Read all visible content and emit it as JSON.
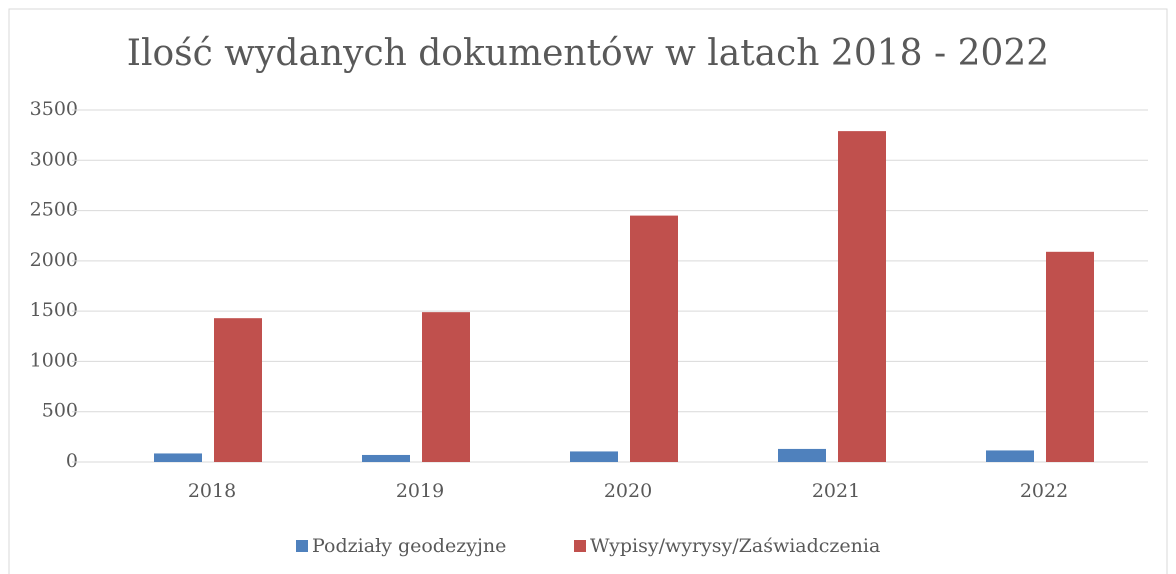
{
  "chart_data": {
    "type": "bar",
    "title": "Ilość wydanych dokumentów w latach 2018 - 2022",
    "categories": [
      "2018",
      "2019",
      "2020",
      "2021",
      "2022"
    ],
    "series": [
      {
        "name": "Podziały geodezyjne",
        "color": "#4f81bd",
        "values": [
          85,
          70,
          105,
          130,
          115
        ]
      },
      {
        "name": "Wypisy/wyrysy/Zaświadczenia",
        "color": "#c0504d",
        "values": [
          1430,
          1490,
          2450,
          3290,
          2090
        ]
      }
    ],
    "ylim": [
      0,
      3500
    ],
    "yticks": [
      0,
      500,
      1000,
      1500,
      2000,
      2500,
      3000,
      3500
    ],
    "grid": true,
    "legend": "bottom"
  }
}
